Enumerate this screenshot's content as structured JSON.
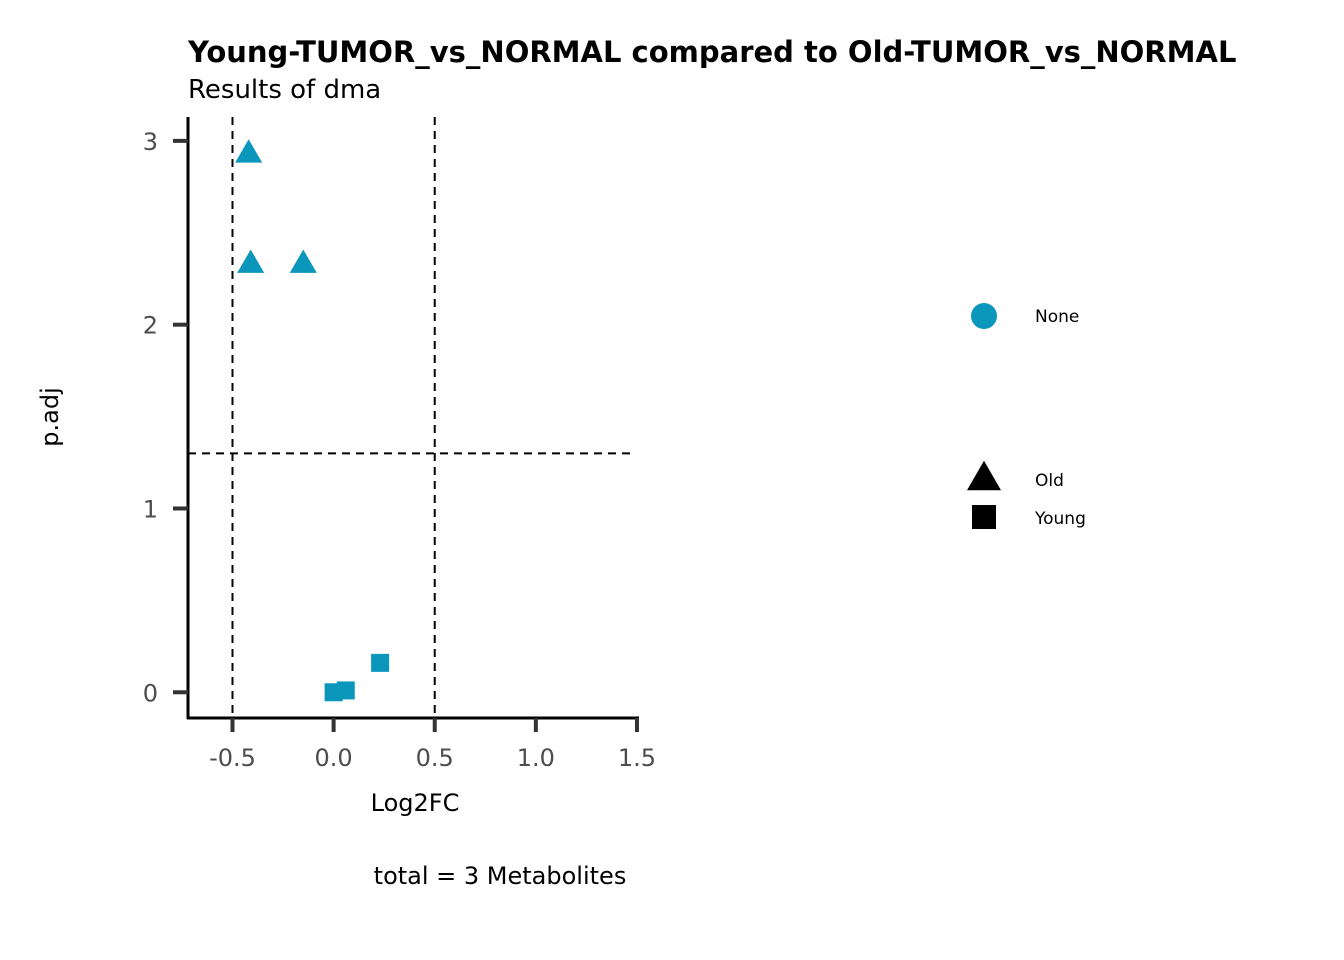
{
  "chart_data": {
    "type": "scatter",
    "title": "Young-TUMOR_vs_NORMAL compared to Old-TUMOR_vs_NORMAL",
    "subtitle": "Results of dma",
    "xlabel": "Log2FC",
    "ylabel": "p.adj",
    "caption": "total = 3 Metabolites",
    "xlim": [
      -0.72,
      1.51
    ],
    "ylim": [
      -0.14,
      3.13
    ],
    "x_ticks": [
      -0.5,
      0.0,
      0.5,
      1.0,
      1.5
    ],
    "x_tick_labels": [
      "-0.5",
      "0.0",
      "0.5",
      "1.0",
      "1.5"
    ],
    "y_ticks": [
      0,
      1,
      2,
      3
    ],
    "y_tick_labels": [
      "0",
      "1",
      "2",
      "3"
    ],
    "reference_lines": {
      "vertical": [
        -0.5,
        0.5
      ],
      "horizontal": [
        1.3
      ],
      "style": "dashed"
    },
    "point_color": "#0B96BC",
    "series": [
      {
        "name": "Old",
        "shape": "triangle",
        "x": [
          -0.42,
          -0.41,
          -0.15
        ],
        "y": [
          2.93,
          2.33,
          2.33
        ]
      },
      {
        "name": "Young",
        "shape": "square",
        "x": [
          0.0,
          0.06,
          0.23
        ],
        "y": [
          0.0,
          0.01,
          0.16
        ]
      }
    ],
    "legend": {
      "position": "right",
      "color_groups": [
        {
          "label": "None",
          "color": "#0B96BC"
        }
      ],
      "shape_groups": [
        {
          "label": "Old",
          "shape": "triangle"
        },
        {
          "label": "Young",
          "shape": "square"
        }
      ]
    },
    "grid": false
  }
}
